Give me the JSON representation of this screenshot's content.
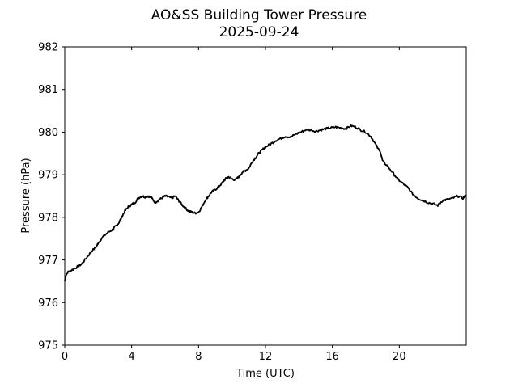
{
  "chart_data": {
    "type": "line",
    "title": "AO&SS Building Tower Pressure",
    "subtitle": "2025-09-24",
    "xlabel": "Time (UTC)",
    "ylabel": "Pressure (hPa)",
    "xlim": [
      0,
      24
    ],
    "ylim": [
      975,
      982
    ],
    "xticks": [
      0,
      4,
      8,
      12,
      16,
      20
    ],
    "yticks": [
      975,
      976,
      977,
      978,
      979,
      980,
      981,
      982
    ],
    "grid": false,
    "legend": "none",
    "line_color": "#000000",
    "series": [
      {
        "x": [
          0,
          0.05,
          0.2,
          0.5,
          0.8,
          1.0,
          1.3,
          1.6,
          1.9,
          2.0,
          2.3,
          2.6,
          2.9,
          3.0,
          3.2,
          3.4,
          3.6,
          3.8,
          4.0,
          4.2,
          4.4,
          4.6,
          4.8,
          5.0,
          5.2,
          5.4,
          5.6,
          5.8,
          6.0,
          6.2,
          6.4,
          6.6,
          6.8,
          7.0,
          7.2,
          7.4,
          7.6,
          7.8,
          8.0,
          8.2,
          8.4,
          8.6,
          8.8,
          9.0,
          9.2,
          9.4,
          9.6,
          9.8,
          10.0,
          10.2,
          10.4,
          10.6,
          10.8,
          11.0,
          11.2,
          11.4,
          11.6,
          11.8,
          12.0,
          12.3,
          12.6,
          12.9,
          13.2,
          13.5,
          13.8,
          14.1,
          14.4,
          14.7,
          15.0,
          15.3,
          15.6,
          15.9,
          16.2,
          16.5,
          16.8,
          17.1,
          17.4,
          17.7,
          18.0,
          18.3,
          18.6,
          18.9,
          19.0,
          19.3,
          19.6,
          19.9,
          20.2,
          20.5,
          20.8,
          21.1,
          21.4,
          21.7,
          22.0,
          22.3,
          22.6,
          22.9,
          23.2,
          23.5,
          23.8,
          24.0
        ],
        "values": [
          976.5,
          976.62,
          976.72,
          976.78,
          976.85,
          976.9,
          977.05,
          977.2,
          977.32,
          977.4,
          977.55,
          977.65,
          977.72,
          977.78,
          977.85,
          978.0,
          978.15,
          978.25,
          978.3,
          978.35,
          978.45,
          978.5,
          978.48,
          978.5,
          978.45,
          978.35,
          978.4,
          978.45,
          978.5,
          978.48,
          978.45,
          978.5,
          978.4,
          978.3,
          978.22,
          978.15,
          978.12,
          978.1,
          978.12,
          978.25,
          978.4,
          978.5,
          978.6,
          978.65,
          978.72,
          978.8,
          978.9,
          978.95,
          978.9,
          978.88,
          978.95,
          979.05,
          979.1,
          979.15,
          979.3,
          979.4,
          979.5,
          979.58,
          979.65,
          979.72,
          979.8,
          979.85,
          979.9,
          979.88,
          979.95,
          980.0,
          980.05,
          980.05,
          980.02,
          980.05,
          980.08,
          980.1,
          980.12,
          980.1,
          980.08,
          980.15,
          980.12,
          980.05,
          980.0,
          979.9,
          979.7,
          979.5,
          979.32,
          979.2,
          979.05,
          978.9,
          978.8,
          978.7,
          978.55,
          978.45,
          978.4,
          978.35,
          978.32,
          978.28,
          978.4,
          978.42,
          978.45,
          978.5,
          978.45,
          978.52
        ]
      }
    ]
  }
}
